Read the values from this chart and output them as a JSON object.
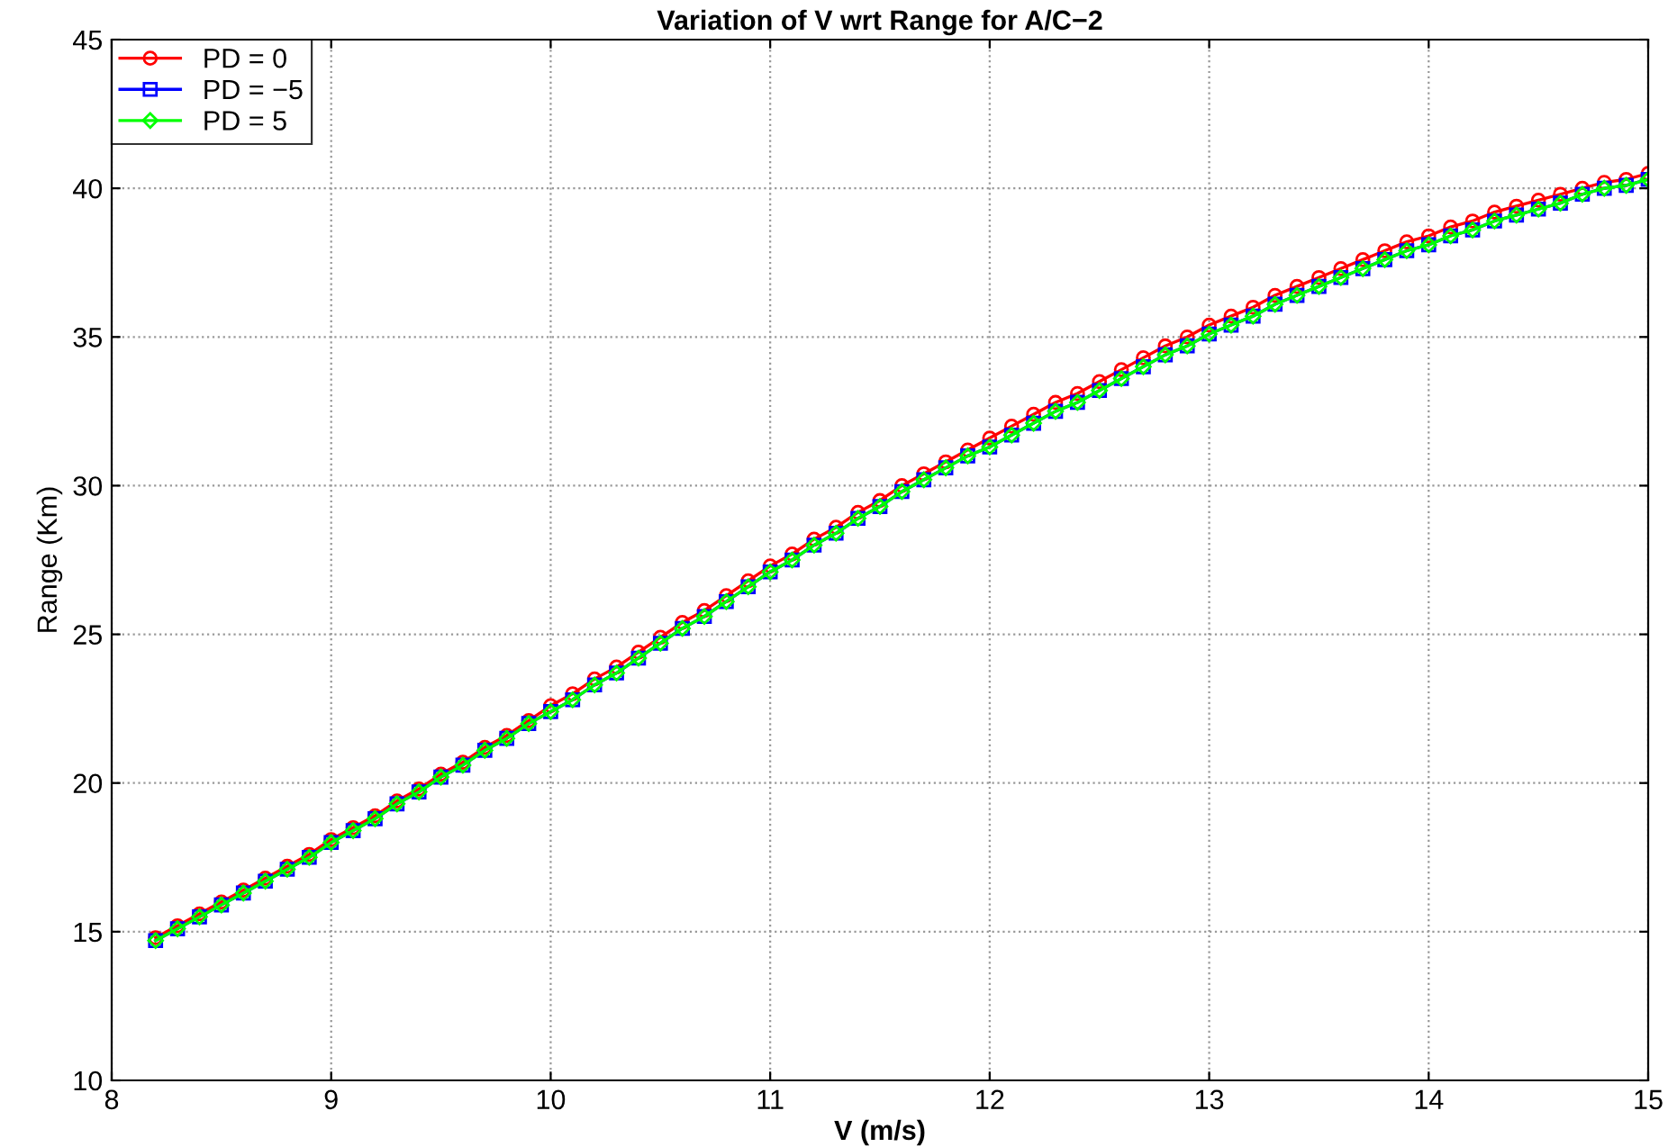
{
  "chart_data": {
    "type": "line",
    "title": "Variation of V wrt Range for A/C−2",
    "xlabel": "V (m/s)",
    "ylabel": "Range (Km)",
    "x": [
      8.2,
      8.3,
      8.4,
      8.5,
      8.6,
      8.7,
      8.8,
      8.9,
      9.0,
      9.1,
      9.2,
      9.3,
      9.4,
      9.5,
      9.6,
      9.7,
      9.8,
      9.9,
      10.0,
      10.1,
      10.2,
      10.3,
      10.4,
      10.5,
      10.6,
      10.7,
      10.8,
      10.9,
      11.0,
      11.1,
      11.2,
      11.3,
      11.4,
      11.5,
      11.6,
      11.7,
      11.8,
      11.9,
      12.0,
      12.1,
      12.2,
      12.3,
      12.4,
      12.5,
      12.6,
      12.7,
      12.8,
      12.9,
      13.0,
      13.1,
      13.2,
      13.3,
      13.4,
      13.5,
      13.6,
      13.7,
      13.8,
      13.9,
      14.0,
      14.1,
      14.2,
      14.3,
      14.4,
      14.5,
      14.6,
      14.7,
      14.8,
      14.9,
      15.0
    ],
    "series": [
      {
        "name": "PD = 0",
        "color": "#ff0000",
        "marker": "circle",
        "values": [
          14.8,
          15.2,
          15.6,
          16.0,
          16.4,
          16.8,
          17.2,
          17.6,
          18.1,
          18.5,
          18.9,
          19.4,
          19.8,
          20.3,
          20.7,
          21.2,
          21.6,
          22.1,
          22.6,
          23.0,
          23.5,
          23.9,
          24.4,
          24.9,
          25.4,
          25.8,
          26.3,
          26.8,
          27.3,
          27.7,
          28.2,
          28.6,
          29.1,
          29.5,
          30.0,
          30.4,
          30.8,
          31.2,
          31.6,
          32.0,
          32.4,
          32.8,
          33.1,
          33.5,
          33.9,
          34.3,
          34.7,
          35.0,
          35.4,
          35.7,
          36.0,
          36.4,
          36.7,
          37.0,
          37.3,
          37.6,
          37.9,
          38.2,
          38.4,
          38.7,
          38.9,
          39.2,
          39.4,
          39.6,
          39.8,
          40.0,
          40.2,
          40.3,
          40.5
        ]
      },
      {
        "name": "PD = −5",
        "color": "#0000ff",
        "marker": "square",
        "values": [
          14.7,
          15.1,
          15.5,
          15.9,
          16.3,
          16.7,
          17.1,
          17.5,
          18.0,
          18.4,
          18.8,
          19.3,
          19.7,
          20.2,
          20.6,
          21.1,
          21.5,
          22.0,
          22.4,
          22.8,
          23.3,
          23.7,
          24.2,
          24.7,
          25.2,
          25.6,
          26.1,
          26.6,
          27.1,
          27.5,
          28.0,
          28.4,
          28.9,
          29.3,
          29.8,
          30.2,
          30.6,
          31.0,
          31.3,
          31.7,
          32.1,
          32.5,
          32.8,
          33.2,
          33.6,
          34.0,
          34.4,
          34.7,
          35.1,
          35.4,
          35.7,
          36.1,
          36.4,
          36.7,
          37.0,
          37.3,
          37.6,
          37.9,
          38.1,
          38.4,
          38.6,
          38.9,
          39.1,
          39.3,
          39.5,
          39.8,
          40.0,
          40.1,
          40.3
        ]
      },
      {
        "name": "PD = 5",
        "color": "#00ff00",
        "marker": "diamond",
        "values": [
          14.7,
          15.1,
          15.5,
          15.9,
          16.3,
          16.7,
          17.1,
          17.5,
          18.0,
          18.4,
          18.8,
          19.3,
          19.7,
          20.2,
          20.6,
          21.1,
          21.5,
          22.0,
          22.4,
          22.8,
          23.3,
          23.7,
          24.2,
          24.7,
          25.2,
          25.6,
          26.1,
          26.6,
          27.1,
          27.5,
          28.0,
          28.4,
          28.9,
          29.3,
          29.8,
          30.2,
          30.6,
          31.0,
          31.3,
          31.7,
          32.1,
          32.5,
          32.8,
          33.2,
          33.6,
          34.0,
          34.4,
          34.7,
          35.1,
          35.4,
          35.7,
          36.1,
          36.4,
          36.7,
          37.0,
          37.3,
          37.6,
          37.9,
          38.1,
          38.4,
          38.6,
          38.9,
          39.1,
          39.3,
          39.5,
          39.8,
          40.0,
          40.1,
          40.3
        ]
      }
    ],
    "xlim": [
      8,
      15
    ],
    "xticks": [
      8,
      9,
      10,
      11,
      12,
      13,
      14,
      15
    ],
    "ylim": [
      10,
      45
    ],
    "yticks": [
      10,
      15,
      20,
      25,
      30,
      35,
      40,
      45
    ],
    "grid": true,
    "legend": "top left",
    "line_style": "solid"
  }
}
